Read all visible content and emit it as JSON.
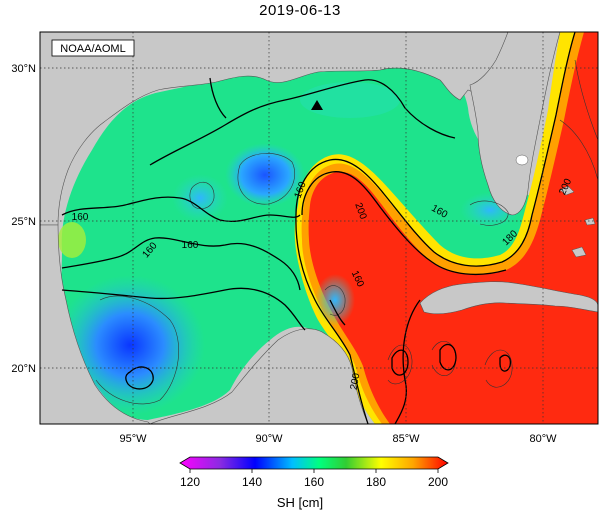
{
  "title": "2019-06-13",
  "source_label": "NOAA/AOML",
  "lat_labels": [
    "30°N",
    "25°N",
    "20°N"
  ],
  "lon_labels": [
    "95°W",
    "90°W",
    "85°W",
    "80°W"
  ],
  "contour_labels": [
    "160",
    "160",
    "160",
    "160",
    "160",
    "160",
    "200",
    "180",
    "200",
    "200"
  ],
  "colorbar": {
    "ticks": [
      "120",
      "140",
      "160",
      "180",
      "200"
    ],
    "label": "SH [cm]",
    "colors": [
      "#ff00ff",
      "#8a2be2",
      "#0000ff",
      "#00bfff",
      "#00ff7f",
      "#32cd32",
      "#ffff00",
      "#ffa500",
      "#ff0000"
    ]
  },
  "colors": {
    "land": "#c8c8c8",
    "ocean_background": "#00e38a",
    "warm": "#ff2a10",
    "cool": "#1f9aff",
    "deep_cool": "#0a4bff"
  }
}
